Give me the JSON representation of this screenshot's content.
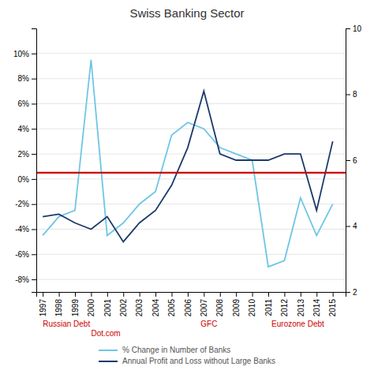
{
  "chart_data": {
    "type": "line",
    "title": "Swiss Banking Sector",
    "x": [
      1997,
      1998,
      1999,
      2000,
      2001,
      2002,
      2003,
      2004,
      2005,
      2006,
      2007,
      2008,
      2009,
      2010,
      2011,
      2012,
      2013,
      2014,
      2015
    ],
    "series": [
      {
        "name": "% Change in Number of Banks",
        "color": "#6EC6E6",
        "values": [
          -4.5,
          -3.0,
          -2.5,
          9.5,
          -4.5,
          -3.5,
          -2.0,
          -1.0,
          3.5,
          4.5,
          4.0,
          2.5,
          2.0,
          1.5,
          -7.0,
          -6.5,
          -1.5,
          -4.5,
          -2.0
        ]
      },
      {
        "name": "Annual Profit and Loss without Large Banks",
        "color": "#1B3A6B",
        "values": [
          -3.0,
          -2.8,
          -3.5,
          -4.0,
          -3.0,
          -5.0,
          -3.5,
          -2.5,
          -0.5,
          2.5,
          7.0,
          2.0,
          1.5,
          1.5,
          1.5,
          2.0,
          2.0,
          -2.5,
          3.0
        ]
      }
    ],
    "hline": {
      "y": 0.5,
      "color": "#cc0000"
    },
    "xlim": [
      1996.6,
      2015.8
    ],
    "xticks": [
      1997,
      1998,
      1999,
      2000,
      2001,
      2002,
      2003,
      2004,
      2005,
      2006,
      2007,
      2008,
      2009,
      2010,
      2011,
      2012,
      2013,
      2014,
      2015
    ],
    "ylim": [
      -9,
      12
    ],
    "yticks": [
      {
        "value": -8,
        "label": "-8%"
      },
      {
        "value": -6,
        "label": "-6%"
      },
      {
        "value": -4,
        "label": "-4%"
      },
      {
        "value": -2,
        "label": "-2%"
      },
      {
        "value": 0,
        "label": "0%"
      },
      {
        "value": 2,
        "label": "2%"
      },
      {
        "value": 4,
        "label": "4%"
      },
      {
        "value": 6,
        "label": "6%"
      },
      {
        "value": 8,
        "label": "8%"
      },
      {
        "value": 10,
        "label": "10%"
      }
    ],
    "y2lim": [
      2,
      10
    ],
    "y2ticks": [
      2,
      4,
      6,
      8,
      10
    ],
    "annotations": [
      {
        "text": "Russian Debt",
        "x": 1997.0,
        "color": "#cc0000"
      },
      {
        "text": "Dot.com",
        "x": 2000.0,
        "color": "#cc0000"
      },
      {
        "text": "GFC",
        "x": 2006.8,
        "color": "#cc0000"
      },
      {
        "text": "Eurozone Debt",
        "x": 2011.2,
        "color": "#cc0000"
      }
    ],
    "grid": true,
    "legend": "bottom"
  }
}
